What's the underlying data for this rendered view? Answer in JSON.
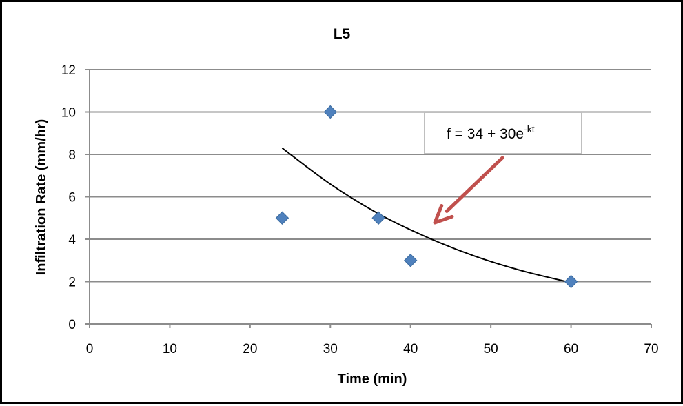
{
  "chart_data": {
    "type": "scatter",
    "title": "L5",
    "xlabel": "Time (min)",
    "ylabel": "Infiltration Rate (mm/hr)",
    "xlim": [
      0,
      70
    ],
    "ylim": [
      0,
      12
    ],
    "xticks": [
      0,
      10,
      20,
      30,
      40,
      50,
      60,
      70
    ],
    "yticks": [
      0,
      2,
      4,
      6,
      8,
      10,
      12
    ],
    "grid": "horizontal",
    "legend": "none",
    "series": [
      {
        "marker": "diamond",
        "color": "#4F81BD",
        "points": [
          {
            "x": 24,
            "y": 5
          },
          {
            "x": 30,
            "y": 10
          },
          {
            "x": 36,
            "y": 5
          },
          {
            "x": 40,
            "y": 3
          },
          {
            "x": 60,
            "y": 2
          }
        ]
      }
    ],
    "trendline": {
      "color": "#000000",
      "points": [
        {
          "x": 24,
          "y": 8.3
        },
        {
          "x": 30,
          "y": 6.6
        },
        {
          "x": 36,
          "y": 5.2
        },
        {
          "x": 42,
          "y": 4.1
        },
        {
          "x": 48,
          "y": 3.2
        },
        {
          "x": 54,
          "y": 2.5
        },
        {
          "x": 60,
          "y": 1.95
        }
      ]
    },
    "annotation": {
      "base": "f = 34 + 30e",
      "superscript": "-kt",
      "arrow_color": "#C0504D"
    }
  }
}
